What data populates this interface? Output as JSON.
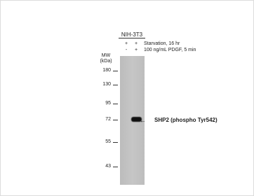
{
  "cell_line": "NIH-3T3",
  "conditions": [
    {
      "signs": [
        "+",
        "+"
      ],
      "label": "Starvation, 16 hr"
    },
    {
      "signs": [
        "-",
        "+"
      ],
      "label": "100 ng/mL PDGF, 5 min"
    }
  ],
  "mw_label": [
    "MW",
    "(kDa)"
  ],
  "markers": [
    180,
    130,
    95,
    72,
    55,
    43
  ],
  "band_label": "SHP2 (phospho Tyr542)"
}
